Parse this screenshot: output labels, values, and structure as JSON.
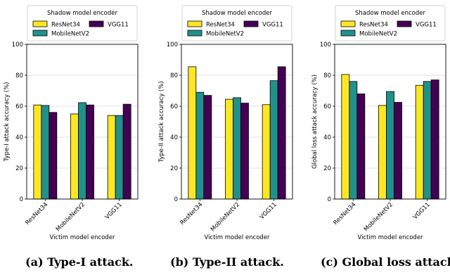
{
  "colors": {
    "ResNet34": "#fde725",
    "MobileNetV2": "#21918c",
    "VGG11": "#440154"
  },
  "legend_title": "Shadow model encoder",
  "captions": [
    "(a) Type-I attack.",
    "(b) Type-II attack.",
    "(c) Global loss attack."
  ],
  "chart_data": [
    {
      "type": "bar",
      "xlabel": "Victim model encoder",
      "ylabel": "Type-I attack accuracy (%)",
      "ylim": [
        0,
        100
      ],
      "yticks": [
        0,
        20,
        40,
        60,
        80,
        100
      ],
      "categories": [
        "ResNet34",
        "MobileNetV2",
        "VGG11"
      ],
      "grid": true,
      "legend_position": "top",
      "series": [
        {
          "name": "ResNet34",
          "values": [
            60.8,
            55.0,
            54.0
          ]
        },
        {
          "name": "MobileNetV2",
          "values": [
            60.5,
            62.3,
            54.0
          ]
        },
        {
          "name": "VGG11",
          "values": [
            56.0,
            60.8,
            61.3
          ]
        }
      ]
    },
    {
      "type": "bar",
      "xlabel": "Victim model encoder",
      "ylabel": "Type-II attack accuracy (%)",
      "ylim": [
        0,
        100
      ],
      "yticks": [
        0,
        20,
        40,
        60,
        80,
        100
      ],
      "categories": [
        "ResNet34",
        "MobileNetV2",
        "VGG11"
      ],
      "grid": true,
      "legend_position": "top",
      "series": [
        {
          "name": "ResNet34",
          "values": [
            85.5,
            64.5,
            61.0
          ]
        },
        {
          "name": "MobileNetV2",
          "values": [
            69.0,
            65.5,
            76.5
          ]
        },
        {
          "name": "VGG11",
          "values": [
            67.0,
            62.0,
            85.5
          ]
        }
      ]
    },
    {
      "type": "bar",
      "xlabel": "Victim model encoder",
      "ylabel": "Global loss attack accuracy (%)",
      "ylim": [
        0,
        100
      ],
      "yticks": [
        0,
        20,
        40,
        60,
        80,
        100
      ],
      "categories": [
        "ResNet34",
        "MobileNetV2",
        "VGG11"
      ],
      "grid": true,
      "legend_position": "top",
      "series": [
        {
          "name": "ResNet34",
          "values": [
            80.5,
            60.5,
            73.5
          ]
        },
        {
          "name": "MobileNetV2",
          "values": [
            76.0,
            69.5,
            76.0
          ]
        },
        {
          "name": "VGG11",
          "values": [
            68.0,
            62.5,
            77.0
          ]
        }
      ]
    }
  ]
}
